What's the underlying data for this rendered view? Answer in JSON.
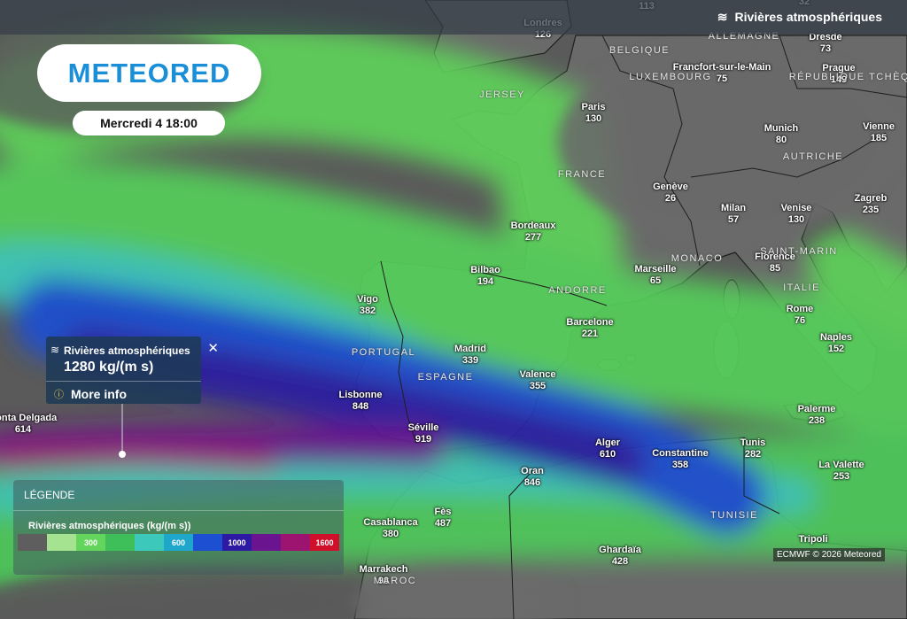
{
  "header": {
    "title": "Rivières atmosphériques"
  },
  "logo": "METEORED",
  "date": "Mercredi 4 18:00",
  "partial_values": [
    113,
    32
  ],
  "cities": [
    {
      "name": "Londres",
      "value": 126
    },
    {
      "name": "Paris",
      "value": 130
    },
    {
      "name": "Francfort-sur-le-Main",
      "value": 75
    },
    {
      "name": "Dresde",
      "value": 73
    },
    {
      "name": "Prague",
      "value": 149
    },
    {
      "name": "Munich",
      "value": 80
    },
    {
      "name": "Vienne",
      "value": 185
    },
    {
      "name": "Genève",
      "value": 26
    },
    {
      "name": "Milan",
      "value": 57
    },
    {
      "name": "Venise",
      "value": 130
    },
    {
      "name": "Zagreb",
      "value": 235
    },
    {
      "name": "Bordeaux",
      "value": 277
    },
    {
      "name": "Bilbao",
      "value": 194
    },
    {
      "name": "Marseille",
      "value": 65
    },
    {
      "name": "Florence",
      "value": 85
    },
    {
      "name": "Vigo",
      "value": 382
    },
    {
      "name": "Rome",
      "value": 76
    },
    {
      "name": "Barcelone",
      "value": 221
    },
    {
      "name": "Madrid",
      "value": 339
    },
    {
      "name": "Naples",
      "value": 152
    },
    {
      "name": "Valence",
      "value": 355
    },
    {
      "name": "Lisbonne",
      "value": 848
    },
    {
      "name": "Séville",
      "value": 919
    },
    {
      "name": "Palerme",
      "value": 238
    },
    {
      "name": "Ponta Delgada",
      "value": 614
    },
    {
      "name": "Alger",
      "value": 610
    },
    {
      "name": "Constantine",
      "value": 358
    },
    {
      "name": "Tunis",
      "value": 282
    },
    {
      "name": "Oran",
      "value": 846
    },
    {
      "name": "La Valette",
      "value": 253
    },
    {
      "name": "Casablanca",
      "value": 380
    },
    {
      "name": "Fès",
      "value": 487
    },
    {
      "name": "Ghardaïa",
      "value": 428
    },
    {
      "name": "Tripoli"
    },
    {
      "name": "Marrakech",
      "value": 98
    }
  ],
  "countries": [
    "BELGIQUE",
    "ALLEMAGNE",
    "LUXEMBOURG",
    "RÉPUBLIQUE TCHÈQUE",
    "JERSEY",
    "FRANCE",
    "AUTRICHE",
    "MONACO",
    "SAINT-MARIN",
    "ANDORRE",
    "ITALIE",
    "PORTUGAL",
    "ESPAGNE",
    "TUNISIE",
    "MAROC"
  ],
  "popup": {
    "title": "Rivières atmosphériques",
    "value": "1280 kg/(m s)",
    "link": "More info"
  },
  "legend": {
    "heading": "LÉGENDE",
    "title": "Rivières atmosphériques (kg/(m s))",
    "steps": [
      {
        "color": "#5e5e5e"
      },
      {
        "color": "#a6e390"
      },
      {
        "color": "#63d45c",
        "label": 300
      },
      {
        "color": "#3fbf5a"
      },
      {
        "color": "#3cc9bb"
      },
      {
        "color": "#1ea6cb",
        "label": 600
      },
      {
        "color": "#1c4fd2"
      },
      {
        "color": "#2c1aa2",
        "label": 1000
      },
      {
        "color": "#6a1490"
      },
      {
        "color": "#9c1470"
      },
      {
        "color": "#d0102a",
        "label": 1600
      }
    ]
  },
  "credit": "ECMWF © 2026 Meteored"
}
